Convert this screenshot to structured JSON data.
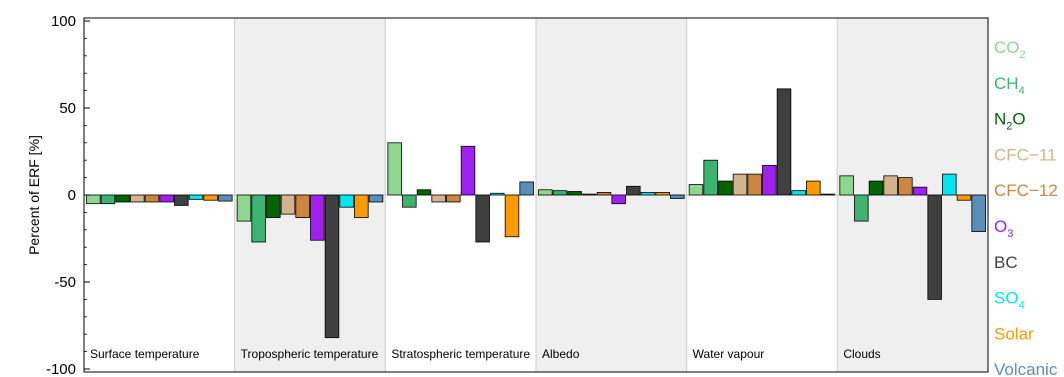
{
  "chart_data": {
    "type": "bar",
    "ylabel": "Percent of ERF [%]",
    "ylim": [
      -100,
      100
    ],
    "yticks": [
      100,
      50,
      0,
      -50,
      -100
    ],
    "grid": false,
    "legend_position": "right",
    "categories": [
      "Surface temperature",
      "Tropospheric temperature",
      "Stratospheric temperature",
      "Albedo",
      "Water vapour",
      "Clouds"
    ],
    "category_shaded": [
      false,
      true,
      false,
      true,
      false,
      true
    ],
    "series": [
      {
        "name": "CO₂",
        "label": {
          "base": "CO",
          "sub": "2"
        },
        "color": "#8fd68f",
        "values": [
          -5,
          -15,
          30,
          3,
          6,
          11
        ]
      },
      {
        "name": "CH₄",
        "label": {
          "base": "CH",
          "sub": "4"
        },
        "color": "#3cb371",
        "values": [
          -5,
          -27,
          -7,
          2.5,
          20,
          -15
        ]
      },
      {
        "name": "N₂O",
        "label": {
          "base": "N",
          "sub": "2",
          "tail": "O"
        },
        "color": "#006400",
        "values": [
          -4,
          -13,
          3,
          2,
          8,
          8
        ]
      },
      {
        "name": "CFC−11",
        "label": {
          "base": "CFC−11"
        },
        "color": "#d2b48c",
        "values": [
          -4,
          -11,
          -4,
          0.5,
          12,
          11
        ]
      },
      {
        "name": "CFC−12",
        "label": {
          "base": "CFC−12"
        },
        "color": "#cd853f",
        "values": [
          -4,
          -13,
          -4,
          1.5,
          12,
          10
        ]
      },
      {
        "name": "O₃",
        "label": {
          "base": "O",
          "sub": "3"
        },
        "color": "#a020f0",
        "values": [
          -4,
          -26,
          28,
          -5,
          17,
          4.5
        ]
      },
      {
        "name": "BC",
        "label": {
          "base": "BC"
        },
        "color": "#404040",
        "values": [
          -6,
          -82,
          -27,
          5,
          61,
          -60
        ]
      },
      {
        "name": "SO₄",
        "label": {
          "base": "SO",
          "sub": "4"
        },
        "color": "#00e5ee",
        "values": [
          -2.5,
          -7,
          1,
          1.5,
          2.5,
          12
        ]
      },
      {
        "name": "Solar",
        "label": {
          "base": "Solar"
        },
        "color": "#ff9900",
        "values": [
          -3,
          -13,
          -24,
          1.5,
          8,
          -3
        ]
      },
      {
        "name": "Volcanic",
        "label": {
          "base": "Volcanic"
        },
        "color": "#5b8db8",
        "values": [
          -3.5,
          -4,
          7.5,
          -2,
          0.5,
          -21
        ]
      }
    ]
  }
}
